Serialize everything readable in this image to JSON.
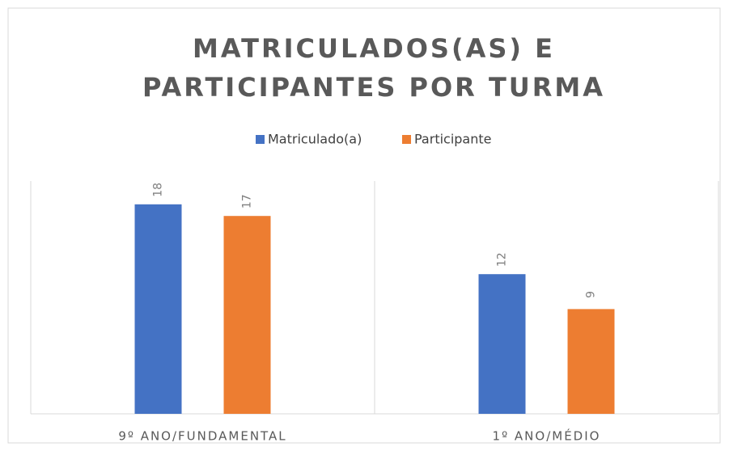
{
  "chart_data": {
    "type": "bar",
    "title": [
      "MATRICULADOS(AS) E",
      "PARTICIPANTES POR TURMA"
    ],
    "categories": [
      "9º ANO/FUNDAMENTAL",
      "1º ANO/MÉDIO"
    ],
    "series": [
      {
        "name": "Matriculado(a)",
        "color": "#4472c4",
        "values": [
          18,
          12
        ]
      },
      {
        "name": "Participante",
        "color": "#ed7d31",
        "values": [
          17,
          9
        ]
      }
    ],
    "ylim": [
      0,
      20
    ],
    "legend": "top"
  }
}
